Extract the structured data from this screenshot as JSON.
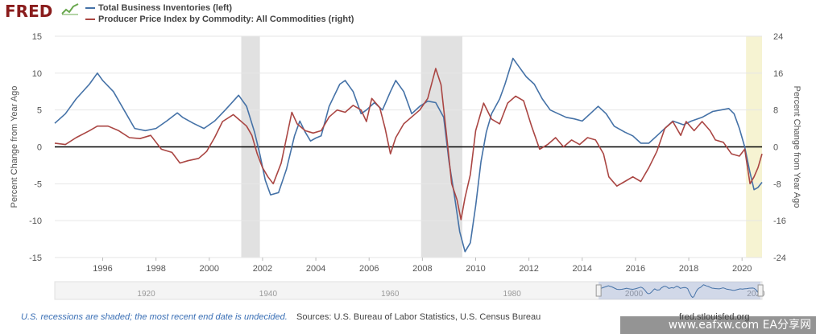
{
  "header": {
    "logo": "FRED",
    "legend": [
      {
        "label": "Total Business Inventories (left)",
        "color": "#4572a7"
      },
      {
        "label": "Producer Price Index by Commodity: All Commodities (right)",
        "color": "#aa4643"
      }
    ]
  },
  "footer": {
    "note": "U.S. recessions are shaded; the most recent end date is undecided.",
    "sources": "Sources: U.S. Bureau of Labor Statistics, U.S. Census Bureau",
    "brand": "fred.stlouisfed.org"
  },
  "watermark": "www.eafxw.com  EA分享网",
  "chart_data": {
    "type": "line",
    "x_domain": [
      1994.2,
      2020.75
    ],
    "left_axis": {
      "label": "Percent Change from Year Ago",
      "ylim": [
        -15,
        15
      ],
      "ticks": [
        15,
        10,
        5,
        0,
        -5,
        -10,
        -15
      ]
    },
    "right_axis": {
      "label": "Percent Change from Year Ago",
      "ylim": [
        -24,
        24
      ],
      "ticks": [
        24,
        16,
        8,
        0,
        -8,
        -16,
        -24
      ]
    },
    "x_ticks": [
      "1996",
      "1998",
      "2000",
      "2002",
      "2004",
      "2006",
      "2008",
      "2010",
      "2012",
      "2014",
      "2016",
      "2018",
      "2020"
    ],
    "recessions": [
      [
        2001.2,
        2001.9
      ],
      [
        2007.95,
        2009.5
      ]
    ],
    "undecided_recession_start": 2020.15,
    "series": [
      {
        "name": "Total Business Inventories (left)",
        "axis": "left",
        "color": "#4572a7",
        "points": [
          [
            1994.2,
            3.2
          ],
          [
            1994.6,
            4.5
          ],
          [
            1995.0,
            6.5
          ],
          [
            1995.5,
            8.5
          ],
          [
            1995.8,
            10.0
          ],
          [
            1996.0,
            9.0
          ],
          [
            1996.4,
            7.5
          ],
          [
            1996.8,
            5.0
          ],
          [
            1997.2,
            2.5
          ],
          [
            1997.6,
            2.2
          ],
          [
            1998.0,
            2.5
          ],
          [
            1998.4,
            3.5
          ],
          [
            1998.8,
            4.6
          ],
          [
            1999.0,
            4.0
          ],
          [
            1999.4,
            3.2
          ],
          [
            1999.8,
            2.5
          ],
          [
            2000.2,
            3.5
          ],
          [
            2000.6,
            5.0
          ],
          [
            2000.9,
            6.2
          ],
          [
            2001.1,
            7.0
          ],
          [
            2001.4,
            5.5
          ],
          [
            2001.7,
            2.0
          ],
          [
            2001.9,
            -1.0
          ],
          [
            2002.1,
            -4.5
          ],
          [
            2002.3,
            -6.5
          ],
          [
            2002.6,
            -6.2
          ],
          [
            2002.9,
            -3.0
          ],
          [
            2003.2,
            1.5
          ],
          [
            2003.4,
            3.5
          ],
          [
            2003.6,
            2.0
          ],
          [
            2003.8,
            0.8
          ],
          [
            2004.0,
            1.2
          ],
          [
            2004.2,
            1.5
          ],
          [
            2004.5,
            5.5
          ],
          [
            2004.9,
            8.5
          ],
          [
            2005.1,
            9.0
          ],
          [
            2005.4,
            7.5
          ],
          [
            2005.7,
            4.5
          ],
          [
            2005.9,
            5.0
          ],
          [
            2006.2,
            6.0
          ],
          [
            2006.5,
            5.0
          ],
          [
            2006.8,
            7.5
          ],
          [
            2007.0,
            9.0
          ],
          [
            2007.3,
            7.5
          ],
          [
            2007.6,
            4.5
          ],
          [
            2007.9,
            5.5
          ],
          [
            2008.2,
            6.2
          ],
          [
            2008.5,
            6.0
          ],
          [
            2008.8,
            4.0
          ],
          [
            2009.0,
            -2.0
          ],
          [
            2009.2,
            -6.5
          ],
          [
            2009.4,
            -11.5
          ],
          [
            2009.6,
            -14.2
          ],
          [
            2009.8,
            -13.0
          ],
          [
            2010.0,
            -8.0
          ],
          [
            2010.2,
            -2.0
          ],
          [
            2010.4,
            2.0
          ],
          [
            2010.6,
            4.5
          ],
          [
            2010.9,
            6.5
          ],
          [
            2011.1,
            8.5
          ],
          [
            2011.4,
            12.0
          ],
          [
            2011.6,
            11.0
          ],
          [
            2011.9,
            9.5
          ],
          [
            2012.2,
            8.5
          ],
          [
            2012.5,
            6.5
          ],
          [
            2012.8,
            5.0
          ],
          [
            2013.1,
            4.5
          ],
          [
            2013.4,
            4.0
          ],
          [
            2013.7,
            3.8
          ],
          [
            2014.0,
            3.5
          ],
          [
            2014.3,
            4.5
          ],
          [
            2014.6,
            5.5
          ],
          [
            2014.9,
            4.5
          ],
          [
            2015.2,
            2.8
          ],
          [
            2015.6,
            2.0
          ],
          [
            2015.9,
            1.5
          ],
          [
            2016.2,
            0.5
          ],
          [
            2016.5,
            0.5
          ],
          [
            2016.8,
            1.5
          ],
          [
            2017.1,
            2.5
          ],
          [
            2017.4,
            3.5
          ],
          [
            2017.8,
            3.0
          ],
          [
            2018.1,
            3.5
          ],
          [
            2018.5,
            4.0
          ],
          [
            2018.9,
            4.8
          ],
          [
            2019.2,
            5.0
          ],
          [
            2019.5,
            5.2
          ],
          [
            2019.7,
            4.5
          ],
          [
            2019.9,
            2.5
          ],
          [
            2020.1,
            0.0
          ],
          [
            2020.3,
            -3.5
          ],
          [
            2020.45,
            -5.8
          ],
          [
            2020.6,
            -5.5
          ],
          [
            2020.75,
            -4.8
          ]
        ]
      },
      {
        "name": "Producer Price Index by Commodity: All Commodities (right)",
        "axis": "right",
        "color": "#aa4643",
        "points": [
          [
            1994.2,
            0.8
          ],
          [
            1994.6,
            0.5
          ],
          [
            1995.0,
            2.0
          ],
          [
            1995.5,
            3.5
          ],
          [
            1995.8,
            4.5
          ],
          [
            1996.2,
            4.5
          ],
          [
            1996.6,
            3.5
          ],
          [
            1997.0,
            2.0
          ],
          [
            1997.4,
            1.8
          ],
          [
            1997.8,
            2.5
          ],
          [
            1998.2,
            -0.5
          ],
          [
            1998.6,
            -1.2
          ],
          [
            1998.9,
            -3.5
          ],
          [
            1999.2,
            -3.0
          ],
          [
            1999.6,
            -2.5
          ],
          [
            1999.9,
            -1.0
          ],
          [
            2000.2,
            2.0
          ],
          [
            2000.5,
            5.5
          ],
          [
            2000.9,
            7.0
          ],
          [
            2001.1,
            6.0
          ],
          [
            2001.4,
            4.5
          ],
          [
            2001.6,
            2.5
          ],
          [
            2001.8,
            -1.5
          ],
          [
            2002.0,
            -4.5
          ],
          [
            2002.2,
            -6.5
          ],
          [
            2002.4,
            -8.0
          ],
          [
            2002.7,
            -3.5
          ],
          [
            2002.9,
            2.0
          ],
          [
            2003.1,
            7.5
          ],
          [
            2003.3,
            5.0
          ],
          [
            2003.6,
            3.5
          ],
          [
            2003.9,
            3.0
          ],
          [
            2004.2,
            3.5
          ],
          [
            2004.5,
            6.5
          ],
          [
            2004.8,
            8.0
          ],
          [
            2005.1,
            7.5
          ],
          [
            2005.4,
            9.0
          ],
          [
            2005.7,
            8.0
          ],
          [
            2005.9,
            5.5
          ],
          [
            2006.1,
            10.5
          ],
          [
            2006.4,
            8.5
          ],
          [
            2006.6,
            4.0
          ],
          [
            2006.8,
            -1.5
          ],
          [
            2007.0,
            2.0
          ],
          [
            2007.3,
            5.0
          ],
          [
            2007.6,
            6.5
          ],
          [
            2007.9,
            8.0
          ],
          [
            2008.2,
            10.5
          ],
          [
            2008.5,
            17.0
          ],
          [
            2008.7,
            13.5
          ],
          [
            2008.9,
            3.0
          ],
          [
            2009.1,
            -8.0
          ],
          [
            2009.3,
            -11.5
          ],
          [
            2009.45,
            -15.8
          ],
          [
            2009.6,
            -11.0
          ],
          [
            2009.8,
            -6.0
          ],
          [
            2010.0,
            3.5
          ],
          [
            2010.3,
            9.5
          ],
          [
            2010.6,
            6.0
          ],
          [
            2010.9,
            5.0
          ],
          [
            2011.2,
            9.5
          ],
          [
            2011.5,
            11.0
          ],
          [
            2011.8,
            10.0
          ],
          [
            2012.1,
            4.5
          ],
          [
            2012.4,
            -0.5
          ],
          [
            2012.7,
            0.5
          ],
          [
            2013.0,
            2.0
          ],
          [
            2013.3,
            0.0
          ],
          [
            2013.6,
            1.5
          ],
          [
            2013.9,
            0.5
          ],
          [
            2014.2,
            2.0
          ],
          [
            2014.5,
            1.5
          ],
          [
            2014.8,
            -1.5
          ],
          [
            2015.0,
            -6.5
          ],
          [
            2015.3,
            -8.5
          ],
          [
            2015.6,
            -7.5
          ],
          [
            2015.9,
            -6.5
          ],
          [
            2016.2,
            -7.5
          ],
          [
            2016.5,
            -4.5
          ],
          [
            2016.8,
            -1.0
          ],
          [
            2017.1,
            4.0
          ],
          [
            2017.4,
            5.5
          ],
          [
            2017.7,
            2.5
          ],
          [
            2017.9,
            5.5
          ],
          [
            2018.2,
            3.5
          ],
          [
            2018.5,
            5.5
          ],
          [
            2018.8,
            3.5
          ],
          [
            2019.0,
            1.5
          ],
          [
            2019.3,
            1.0
          ],
          [
            2019.6,
            -1.5
          ],
          [
            2019.9,
            -2.0
          ],
          [
            2020.1,
            -0.5
          ],
          [
            2020.3,
            -8.0
          ],
          [
            2020.45,
            -6.5
          ],
          [
            2020.6,
            -4.5
          ],
          [
            2020.75,
            -1.5
          ]
        ]
      }
    ]
  },
  "navigator": {
    "labels": [
      "1920",
      "1940",
      "1960",
      "1980",
      "2000",
      "2020"
    ]
  }
}
